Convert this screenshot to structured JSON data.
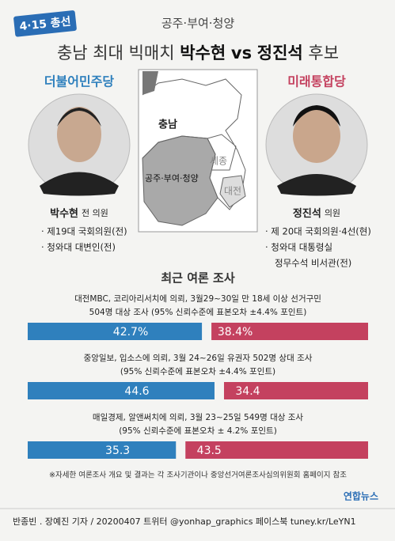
{
  "badge": "4·15 총선",
  "header": {
    "subtitle": "공주·부여·청양",
    "title_prefix": "충남 최대 빅매치",
    "name_a": "박수현",
    "vs": "vs",
    "name_b": "정진석",
    "title_suffix": "후보"
  },
  "candidates": [
    {
      "party": "더불어민주당",
      "name": "박수현",
      "position": "전 의원",
      "color": "#2f80bd",
      "career": [
        "· 제19대 국회의원(전)",
        "· 청와대 대변인(전)"
      ]
    },
    {
      "party": "미래통합당",
      "name": "정진석",
      "position": "의원",
      "color": "#c4415f",
      "career": [
        "· 제 20대 국회의원·4선(현)",
        "· 청와대 대통령실",
        "정무수석 비서관(전)"
      ]
    }
  ],
  "map": {
    "labels": [
      "충남",
      "세종",
      "공주·부여·청양",
      "대전"
    ]
  },
  "polls": {
    "title": "최근 여론 조사",
    "items": [
      {
        "description": [
          "대전MBC, 코리아리서치에 의뢰, 3월29~30일 만 18세 이상 선거구민",
          "504명 대상 조사 (95% 신뢰수준에 표본오차 ±4.4% 포인트)"
        ],
        "values": [
          42.7,
          38.4
        ],
        "value_labels": [
          "42.7%",
          "38.4%"
        ]
      },
      {
        "description": [
          "중앙일보, 입소스에 의뢰, 3월 24~26일 유권자 502명 상대 조사",
          "(95% 신뢰수준에 표본오차 ±4.4% 포인트)"
        ],
        "values": [
          44.6,
          34.4
        ]
      },
      {
        "description": [
          "매일경제, 알앤써치에 의뢰, 3월 23~25일 549명 대상 조사",
          "(95% 신뢰수준에 표본오차 ± 4.2% 포인트)"
        ],
        "values": [
          35.3,
          43.5
        ]
      }
    ]
  },
  "note": "※자세한 여론조사 개요 및 결과는 각 조사기관이나 중앙선거여론조사심의위원회 홈페이지 참조",
  "logo": "연합뉴스",
  "footer": "반종빈 . 장예진 기자 / 20200407 트위터 @yonhap_graphics 페이스북 tuney.kr/LeYN1"
}
